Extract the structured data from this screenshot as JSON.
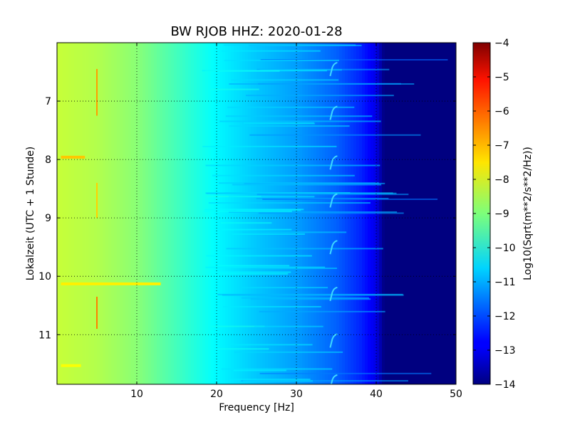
{
  "chart_data": {
    "type": "heatmap",
    "title": "BW RJOB HHZ: 2020-01-28",
    "xlabel": "Frequency [Hz]",
    "ylabel": "Lokalzeit (UTC + 1 Stunde)",
    "xlim": [
      0,
      50
    ],
    "ylim": [
      11.85,
      6.0
    ],
    "y_inverted": true,
    "x_ticks": [
      10,
      20,
      30,
      40,
      50
    ],
    "y_ticks": [
      7,
      8,
      9,
      10,
      11
    ],
    "grid": true,
    "colorbar": {
      "label": "Log10(Sqrt(m**2/s**2/Hz))",
      "ticks": [
        -4,
        -5,
        -6,
        -7,
        -8,
        -9,
        -10,
        -11,
        -12,
        -13,
        -14
      ],
      "range": [
        -14,
        -4
      ],
      "colormap": "jet"
    },
    "background_profile": {
      "frequency_hz": [
        0,
        5,
        10,
        15,
        20,
        25,
        30,
        35,
        38,
        40,
        41,
        50
      ],
      "log_amplitude": [
        -8.3,
        -8.5,
        -8.9,
        -9.6,
        -10.3,
        -10.8,
        -11.2,
        -11.8,
        -12.4,
        -13.0,
        -14.0,
        -14.0
      ]
    },
    "features": [
      {
        "kind": "vertical_line",
        "freq_hz": 5.0,
        "time_start": 6.45,
        "time_end": 7.25,
        "value": -6.8
      },
      {
        "kind": "vertical_line",
        "freq_hz": 5.0,
        "time_start": 8.4,
        "time_end": 9.0,
        "value": -7.3
      },
      {
        "kind": "vertical_line",
        "freq_hz": 5.0,
        "time_start": 10.35,
        "time_end": 10.9,
        "value": -6.5
      },
      {
        "kind": "horizontal_band",
        "time": 7.96,
        "freq_start": 0.5,
        "freq_end": 3.5,
        "value": -7.2
      },
      {
        "kind": "horizontal_band",
        "time": 10.13,
        "freq_start": 0.5,
        "freq_end": 13.0,
        "value": -7.6
      },
      {
        "kind": "horizontal_band",
        "time": 11.53,
        "freq_start": 0.5,
        "freq_end": 3.0,
        "value": -7.8
      },
      {
        "kind": "hook",
        "freq_hz": 34.5,
        "times": [
          6.45,
          7.2,
          8.05,
          8.7,
          9.5,
          10.3,
          11.1,
          11.8
        ]
      }
    ]
  }
}
